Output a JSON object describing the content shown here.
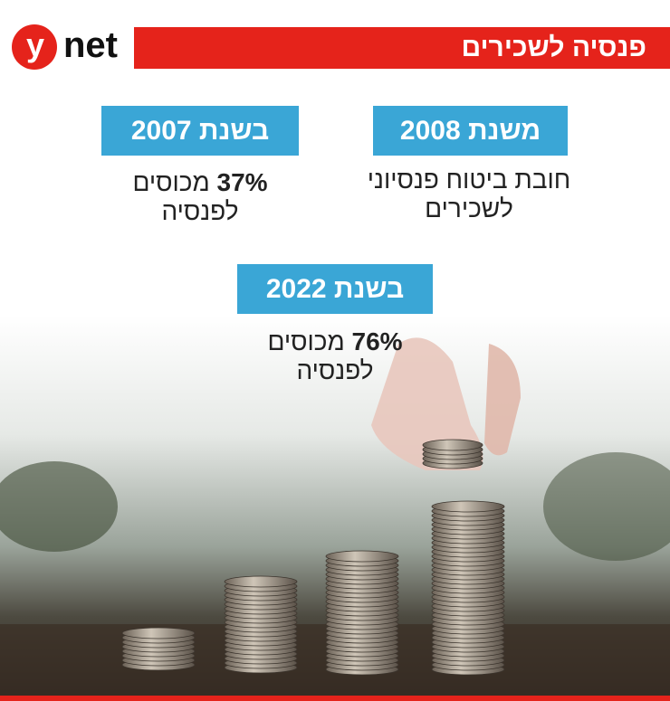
{
  "header": {
    "logo": {
      "y": "y",
      "net": "net"
    },
    "title": "פנסיה לשכירים"
  },
  "blocks": [
    {
      "label": "משנת 2008",
      "line1": "חובת ביטוח פנסיוני",
      "line2": "לשכירים"
    },
    {
      "label": "בשנת 2007",
      "percent": "37%",
      "line1": "מכוסים",
      "line2": "לפנסיה"
    },
    {
      "label": "בשנת 2022",
      "percent": "76%",
      "line1": "מכוסים",
      "line2": "לפנסיה"
    }
  ]
}
